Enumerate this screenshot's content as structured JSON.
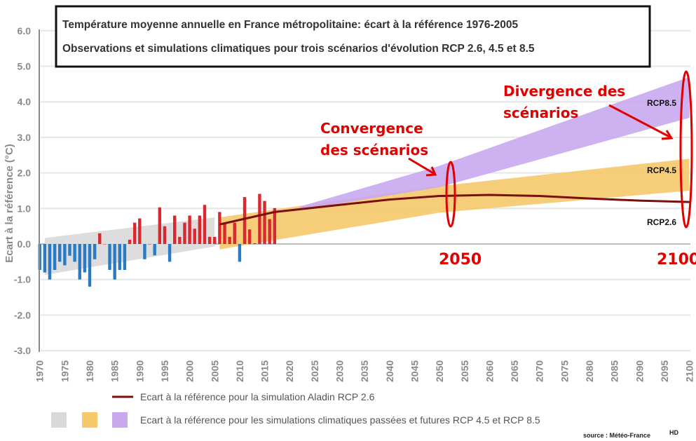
{
  "chart_data": {
    "type": "bar",
    "title": "Température moyenne annuelle en France métropolitaine: écart à la référence 1976-2005",
    "subtitle": "Observations et simulations climatiques pour trois scénarios d'évolution RCP 2.6, 4.5 et 8.5",
    "ylabel": "Ecart à la référence (°C)",
    "xlabel": "",
    "ylim": [
      -3.0,
      6.0
    ],
    "xlim": [
      1970,
      2100
    ],
    "yticks": [
      "6.0",
      "5.0",
      "4.0",
      "3.0",
      "2.0",
      "1.0",
      "0.0",
      "-1.0",
      "-2.0",
      "-3.0"
    ],
    "xticks": [
      "1970",
      "1975",
      "1980",
      "1985",
      "1990",
      "1995",
      "2000",
      "2005",
      "2010",
      "2015",
      "2020",
      "2025",
      "2030",
      "2035",
      "2040",
      "2045",
      "2050",
      "2055",
      "2060",
      "2065",
      "2070",
      "2075",
      "2080",
      "2085",
      "2090",
      "2095",
      "2100"
    ],
    "grid": true,
    "observations": {
      "years": [
        1970,
        1971,
        1972,
        1973,
        1974,
        1975,
        1976,
        1977,
        1978,
        1979,
        1980,
        1981,
        1982,
        1983,
        1984,
        1985,
        1986,
        1987,
        1988,
        1989,
        1990,
        1991,
        1992,
        1993,
        1994,
        1995,
        1996,
        1997,
        1998,
        1999,
        2000,
        2001,
        2002,
        2003,
        2004,
        2005,
        2006,
        2007,
        2008,
        2009,
        2010,
        2011,
        2012,
        2013,
        2014,
        2015,
        2016,
        2017
      ],
      "values": [
        -0.73,
        -0.8,
        -1.0,
        -0.73,
        -0.5,
        -0.6,
        -0.33,
        -0.5,
        -1.0,
        -0.8,
        -1.2,
        -0.43,
        0.3,
        0.0,
        -0.73,
        -1.0,
        -0.73,
        -0.73,
        0.12,
        0.6,
        0.72,
        -0.43,
        0.0,
        -0.32,
        1.03,
        0.5,
        -0.5,
        0.8,
        0.2,
        0.6,
        0.8,
        0.43,
        0.8,
        1.1,
        0.2,
        0.2,
        0.9,
        0.6,
        0.2,
        0.6,
        -0.5,
        1.32,
        0.41,
        0.02,
        1.41,
        1.21,
        0.7,
        1.01
      ],
      "positive_color": "#d9282f",
      "negative_color": "#2b7bc4"
    },
    "bands": [
      {
        "name": "passées",
        "color": "#d9d9d9",
        "years": [
          1971,
          2005
        ],
        "lower": [
          -0.87,
          -0.07
        ],
        "upper": [
          0.17,
          0.75
        ]
      },
      {
        "name": "RCP4.5",
        "color": "#f5c96a",
        "years": [
          2006,
          2050,
          2100
        ],
        "lower": [
          -0.15,
          0.88,
          1.5
        ],
        "upper": [
          0.75,
          1.63,
          2.4
        ]
      },
      {
        "name": "RCP8.5",
        "color": "#c9a8ee",
        "years": [
          2022,
          2050,
          2100
        ],
        "lower": [
          0.95,
          1.6,
          3.55
        ],
        "upper": [
          1.05,
          2.2,
          4.7
        ]
      }
    ],
    "rcp26_line": {
      "name": "RCP2.6",
      "color": "#7a0f0f",
      "years": [
        2006,
        2017,
        2030,
        2040,
        2050,
        2060,
        2070,
        2080,
        2090,
        2100
      ],
      "values": [
        0.55,
        0.9,
        1.1,
        1.25,
        1.35,
        1.38,
        1.35,
        1.28,
        1.22,
        1.18
      ]
    },
    "series_labels": [
      "RCP8.5",
      "RCP4.5",
      "RCP2.6"
    ],
    "annotations": {
      "convergence": [
        "Convergence",
        "des scénarios"
      ],
      "divergence": [
        "Divergence des",
        "scénarios"
      ],
      "year_2050": "2050",
      "year_2100": "2100",
      "color": "#e00000"
    },
    "legend": {
      "line_label": "Ecart à la référence pour la simulation Aladin RCP 2.6",
      "band_label": "Ecart à la référence pour les simulations climatiques passées et futures RCP 4.5 et RCP 8.5",
      "placement": "bottom"
    },
    "source": "source : Météo-France",
    "source_suffix": "HD"
  }
}
